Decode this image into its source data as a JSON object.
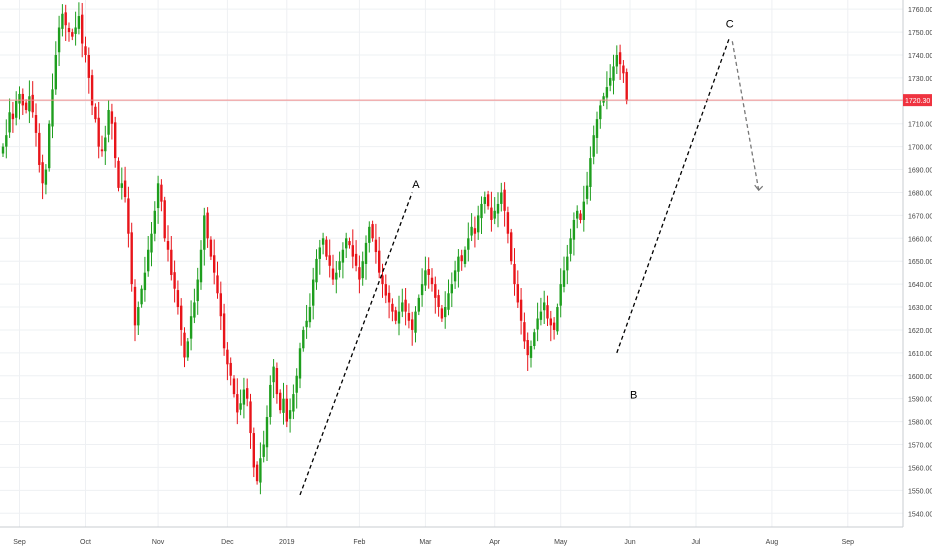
{
  "chart_data": {
    "type": "candlestick",
    "colors": {
      "up": "#1e9e1e",
      "down": "#e8141a",
      "current_line": "#f28b8b",
      "current_label_bg": "#ef3340",
      "grid": "#eef0f3",
      "dashed": "#000000",
      "dashed_projection": "#777777"
    },
    "ylim": [
      1535,
      1765
    ],
    "y_ticks": [
      "1540.00",
      "1550.00",
      "1560.00",
      "1570.00",
      "1580.00",
      "1590.00",
      "1600.00",
      "1610.00",
      "1620.00",
      "1630.00",
      "1640.00",
      "1650.00",
      "1660.00",
      "1670.00",
      "1680.00",
      "1690.00",
      "1700.00",
      "1710.00",
      "1720.00",
      "1730.00",
      "1740.00",
      "1750.00",
      "1760.00"
    ],
    "x_ticks": [
      {
        "label": "Sep",
        "t": 5
      },
      {
        "label": "Oct",
        "t": 25
      },
      {
        "label": "Nov",
        "t": 47
      },
      {
        "label": "Dec",
        "t": 68
      },
      {
        "label": "2019",
        "t": 86
      },
      {
        "label": "Feb",
        "t": 108
      },
      {
        "label": "Mar",
        "t": 128
      },
      {
        "label": "Apr",
        "t": 149
      },
      {
        "label": "May",
        "t": 169
      },
      {
        "label": "Jun",
        "t": 190
      },
      {
        "label": "Jul",
        "t": 210
      },
      {
        "label": "Aug",
        "t": 233
      },
      {
        "label": "Sep",
        "t": 256
      }
    ],
    "current_price": 1720.3,
    "current_price_label": "1720.30",
    "closes": [
      1700,
      1705,
      1715,
      1712,
      1720,
      1723,
      1718,
      1716,
      1722,
      1715,
      1706,
      1692,
      1684,
      1690,
      1710,
      1725,
      1740,
      1752,
      1758,
      1753,
      1750,
      1748,
      1752,
      1757,
      1745,
      1740,
      1730,
      1718,
      1712,
      1700,
      1698,
      1704,
      1716,
      1710,
      1695,
      1682,
      1684,
      1678,
      1662,
      1640,
      1622,
      1630,
      1638,
      1645,
      1655,
      1662,
      1672,
      1684,
      1676,
      1660,
      1655,
      1644,
      1638,
      1630,
      1620,
      1608,
      1615,
      1626,
      1632,
      1642,
      1655,
      1670,
      1660,
      1652,
      1645,
      1636,
      1626,
      1612,
      1605,
      1600,
      1592,
      1584,
      1588,
      1594,
      1590,
      1575,
      1560,
      1554,
      1564,
      1570,
      1582,
      1596,
      1604,
      1592,
      1585,
      1590,
      1580,
      1585,
      1592,
      1600,
      1612,
      1620,
      1624,
      1630,
      1642,
      1651,
      1656,
      1660,
      1652,
      1648,
      1642,
      1645,
      1650,
      1655,
      1660,
      1657,
      1652,
      1648,
      1642,
      1650,
      1658,
      1665,
      1660,
      1654,
      1645,
      1640,
      1635,
      1632,
      1628,
      1624,
      1628,
      1632,
      1628,
      1624,
      1620,
      1628,
      1634,
      1640,
      1646,
      1644,
      1640,
      1634,
      1630,
      1625,
      1630,
      1636,
      1640,
      1646,
      1652,
      1650,
      1655,
      1660,
      1665,
      1662,
      1670,
      1675,
      1678,
      1674,
      1668,
      1672,
      1675,
      1680,
      1672,
      1662,
      1650,
      1640,
      1632,
      1624,
      1615,
      1609,
      1613,
      1619,
      1625,
      1628,
      1632,
      1625,
      1622,
      1620,
      1630,
      1640,
      1646,
      1652,
      1660,
      1668,
      1672,
      1668,
      1676,
      1683,
      1695,
      1705,
      1712,
      1718,
      1722,
      1726,
      1730,
      1735,
      1740,
      1736,
      1732,
      1720
    ]
  }
}
